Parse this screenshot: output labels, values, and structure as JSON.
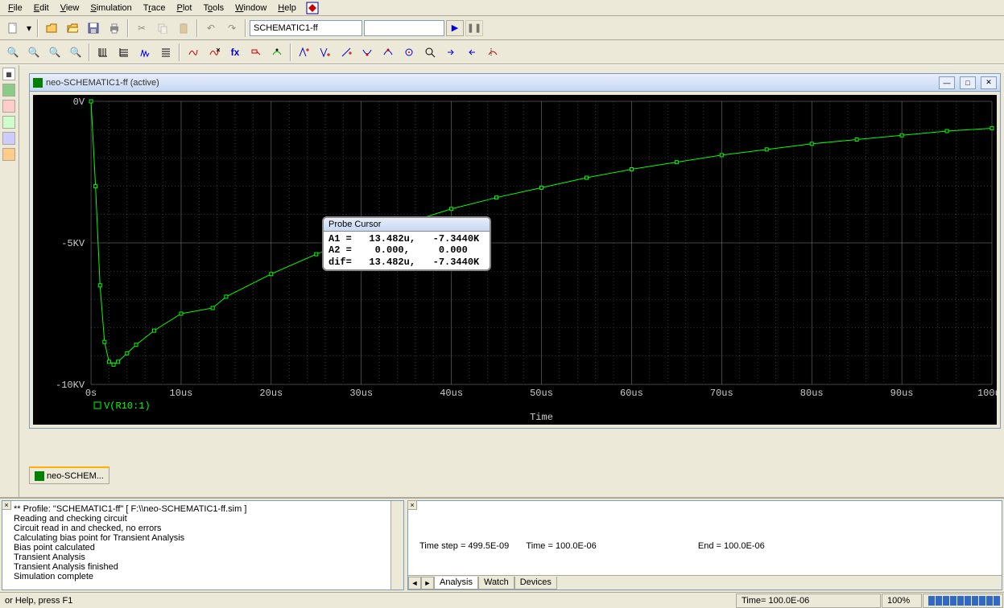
{
  "menu": [
    "File",
    "Edit",
    "View",
    "Simulation",
    "Trace",
    "Plot",
    "Tools",
    "Window",
    "Help"
  ],
  "schematic_combo": "SCHEMATIC1-ff",
  "plot_window": {
    "title": "neo-SCHEMATIC1-ff (active)"
  },
  "chart": {
    "type": "line",
    "background": "#000000",
    "grid_color": "#666666",
    "axis_text_color": "#cccccc",
    "trace_color": "#00ff00",
    "x_label": "Time",
    "x_ticks": [
      "0s",
      "10us",
      "20us",
      "30us",
      "40us",
      "50us",
      "60us",
      "70us",
      "80us",
      "90us",
      "100us"
    ],
    "xlim_us": [
      0,
      100
    ],
    "y_ticks": [
      "0V",
      "-5KV",
      "-10KV"
    ],
    "ylim_kv": [
      -10,
      0
    ],
    "legend": "V(R10:1)",
    "data_points_us_kv": [
      [
        0,
        0
      ],
      [
        0.5,
        -3
      ],
      [
        1,
        -6.5
      ],
      [
        1.5,
        -8.5
      ],
      [
        2,
        -9.2
      ],
      [
        2.5,
        -9.3
      ],
      [
        3,
        -9.2
      ],
      [
        4,
        -8.9
      ],
      [
        5,
        -8.6
      ],
      [
        7,
        -8.1
      ],
      [
        10,
        -7.5
      ],
      [
        13.5,
        -7.3
      ],
      [
        15,
        -6.9
      ],
      [
        20,
        -6.1
      ],
      [
        25,
        -5.4
      ],
      [
        30,
        -4.8
      ],
      [
        35,
        -4.3
      ],
      [
        40,
        -3.8
      ],
      [
        45,
        -3.4
      ],
      [
        50,
        -3.05
      ],
      [
        55,
        -2.7
      ],
      [
        60,
        -2.4
      ],
      [
        65,
        -2.15
      ],
      [
        70,
        -1.9
      ],
      [
        75,
        -1.7
      ],
      [
        80,
        -1.5
      ],
      [
        85,
        -1.35
      ],
      [
        90,
        -1.2
      ],
      [
        95,
        -1.05
      ],
      [
        100,
        -0.95
      ]
    ]
  },
  "probe": {
    "title": "Probe Cursor",
    "rows": [
      "A1 =   13.482u,   -7.3440K",
      "A2 =    0.000,     0.000",
      "dif=   13.482u,   -7.3440K"
    ]
  },
  "doc_tab": "neo-SCHEM...",
  "log": [
    "** Profile: \"SCHEMATIC1-ff\"  [ F:\\\\neo-SCHEMATIC1-ff.sim ]",
    "Reading and checking circuit",
    "Circuit read in and checked, no errors",
    "Calculating bias point for Transient Analysis",
    "Bias point calculated",
    "Transient Analysis",
    "Transient Analysis finished",
    "Simulation complete"
  ],
  "sim_status": {
    "time_step": "Time step =  499.5E-09",
    "time": "Time =  100.0E-06",
    "end": "End =  100.0E-06"
  },
  "sim_tabs": [
    "Analysis",
    "Watch",
    "Devices"
  ],
  "statusbar": {
    "help": "or Help, press F1",
    "time": "Time= 100.0E-06",
    "pct": "100%"
  }
}
